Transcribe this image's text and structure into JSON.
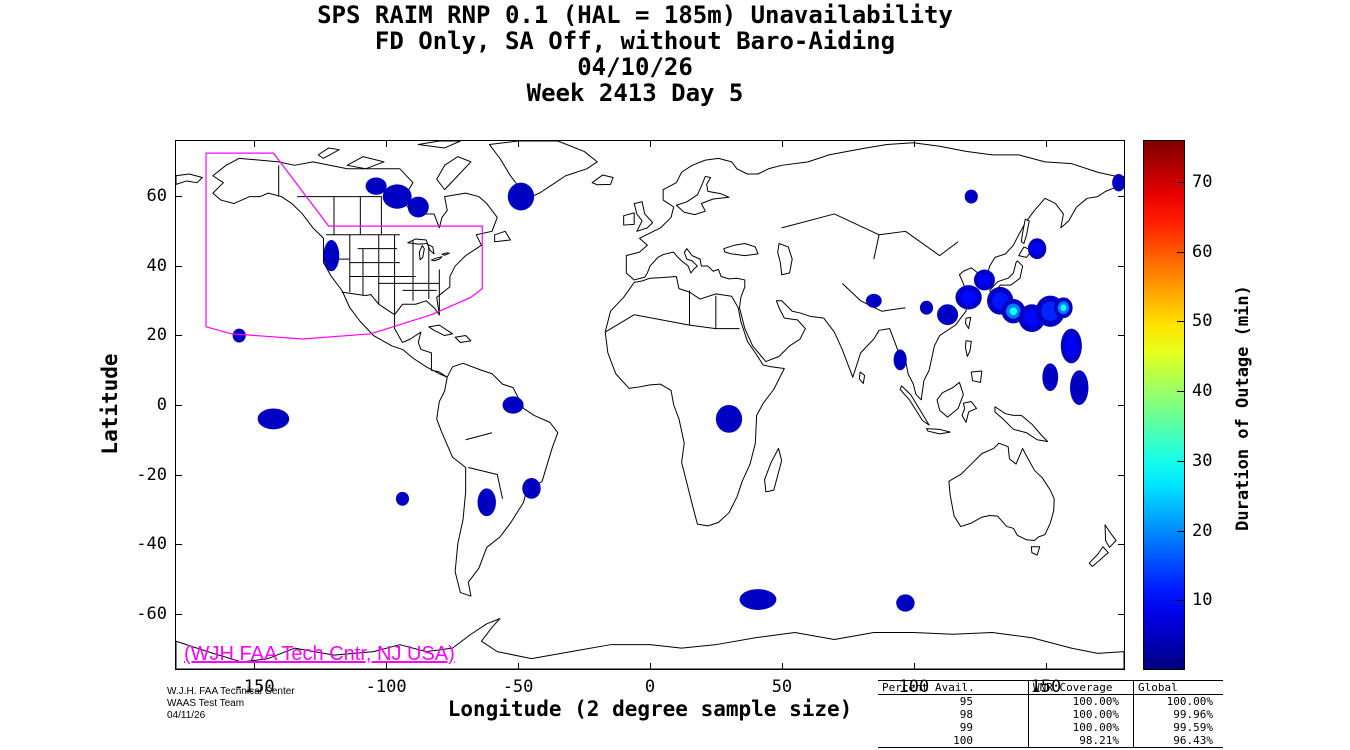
{
  "title": {
    "line1": "SPS RAIM RNP 0.1 (HAL = 185m) Unavailability",
    "line2": "FD Only, SA Off, without Baro-Aiding",
    "line3": "04/10/26",
    "line4": "Week 2413 Day 5"
  },
  "axes": {
    "xlabel": "Longitude (2 degree sample size)",
    "ylabel": "Latitude",
    "x_ticks": [
      -150,
      -100,
      -50,
      0,
      50,
      100,
      150
    ],
    "y_ticks": [
      60,
      40,
      20,
      0,
      -20,
      -40,
      -60
    ],
    "lon_range": [
      -180,
      180
    ],
    "lat_range": [
      -76,
      76
    ]
  },
  "colorbar": {
    "label": "Duration of Outage (min)",
    "ticks": [
      10,
      20,
      30,
      40,
      50,
      60,
      70
    ],
    "range": [
      0,
      76
    ],
    "colormap": "jet"
  },
  "map_annotation": "(WJH FAA Tech Cntr, NJ USA)",
  "annotation_color": "#ff00ff",
  "credits": {
    "line1": "W.J.H. FAA Technical Center",
    "line2": "WAAS Test Team",
    "line3": "04/11/26"
  },
  "stats_table": {
    "headers": [
      "Percent Avail.",
      "WNR Coverage",
      "Global"
    ],
    "rows": [
      [
        "95",
        "100.00%",
        "100.00%"
      ],
      [
        "98",
        "100.00%",
        "99.96%"
      ],
      [
        "99",
        "100.00%",
        "99.59%"
      ],
      [
        "100",
        "98.21%",
        "96.43%"
      ]
    ]
  },
  "chart_data": {
    "type": "heatmap",
    "projection": "equirectangular world map",
    "title": "SPS RAIM RNP 0.1 (HAL = 185m) Unavailability",
    "value_units": "duration of outage (min)",
    "legend_position": "right colorbar",
    "coverage_boundary_color": "#ff00ff",
    "coverage_boundary": [
      [
        -168.6,
        72.5
      ],
      [
        -143,
        72.5
      ],
      [
        -122,
        51.5
      ],
      [
        -63.7,
        51.5
      ],
      [
        -63.7,
        33.5
      ],
      [
        -68,
        31
      ],
      [
        -83,
        26
      ],
      [
        -106,
        20.5
      ],
      [
        -132,
        19
      ],
      [
        -159,
        20.5
      ],
      [
        -168.6,
        22.5
      ]
    ],
    "outage_regions": [
      {
        "lon": -104,
        "lat": 63,
        "rx": 4,
        "ry": 2.5,
        "peak_min": 6
      },
      {
        "lon": -96,
        "lat": 60,
        "rx": 5.5,
        "ry": 3.5,
        "peak_min": 7
      },
      {
        "lon": -88,
        "lat": 57,
        "rx": 4,
        "ry": 3,
        "peak_min": 6
      },
      {
        "lon": -49,
        "lat": 60,
        "rx": 5,
        "ry": 4,
        "peak_min": 7
      },
      {
        "lon": -121,
        "lat": 43,
        "rx": 3,
        "ry": 4.5,
        "peak_min": 6
      },
      {
        "lon": -156,
        "lat": 20,
        "rx": 2.5,
        "ry": 2,
        "peak_min": 6
      },
      {
        "lon": -143,
        "lat": -4,
        "rx": 6,
        "ry": 3,
        "peak_min": 6
      },
      {
        "lon": -52,
        "lat": 0,
        "rx": 4,
        "ry": 2.5,
        "peak_min": 6
      },
      {
        "lon": -94,
        "lat": -27,
        "rx": 2.5,
        "ry": 2,
        "peak_min": 6
      },
      {
        "lon": -62,
        "lat": -28,
        "rx": 3.5,
        "ry": 4,
        "peak_min": 7
      },
      {
        "lon": -45,
        "lat": -24,
        "rx": 3.5,
        "ry": 3,
        "peak_min": 6
      },
      {
        "lon": 30,
        "lat": -4,
        "rx": 5,
        "ry": 4,
        "peak_min": 7
      },
      {
        "lon": 41,
        "lat": -56,
        "rx": 7,
        "ry": 3,
        "peak_min": 7
      },
      {
        "lon": 97,
        "lat": -57,
        "rx": 3.5,
        "ry": 2.5,
        "peak_min": 6
      },
      {
        "lon": 85,
        "lat": 30,
        "rx": 3,
        "ry": 2,
        "peak_min": 6
      },
      {
        "lon": 95,
        "lat": 13,
        "rx": 2.5,
        "ry": 3,
        "peak_min": 6
      },
      {
        "lon": 105,
        "lat": 28,
        "rx": 2.5,
        "ry": 2,
        "peak_min": 7
      },
      {
        "lon": 113,
        "lat": 26,
        "rx": 4,
        "ry": 3,
        "peak_min": 10
      },
      {
        "lon": 121,
        "lat": 31,
        "rx": 5,
        "ry": 3.5,
        "peak_min": 14
      },
      {
        "lon": 127,
        "lat": 36,
        "rx": 4,
        "ry": 3,
        "peak_min": 12
      },
      {
        "lon": 133,
        "lat": 30,
        "rx": 5,
        "ry": 4,
        "peak_min": 16
      },
      {
        "lon": 138,
        "lat": 27,
        "rx": 4.5,
        "ry": 3.5,
        "peak_min": 30
      },
      {
        "lon": 145,
        "lat": 25,
        "rx": 5,
        "ry": 4,
        "peak_min": 14
      },
      {
        "lon": 152,
        "lat": 27,
        "rx": 5.5,
        "ry": 4.5,
        "peak_min": 18
      },
      {
        "lon": 157,
        "lat": 28,
        "rx": 3.5,
        "ry": 3,
        "peak_min": 30
      },
      {
        "lon": 160,
        "lat": 17,
        "rx": 4,
        "ry": 5,
        "peak_min": 12
      },
      {
        "lon": 163,
        "lat": 5,
        "rx": 3.5,
        "ry": 5,
        "peak_min": 10
      },
      {
        "lon": 152,
        "lat": 8,
        "rx": 3,
        "ry": 4,
        "peak_min": 8
      },
      {
        "lon": 147,
        "lat": 45,
        "rx": 3.5,
        "ry": 3,
        "peak_min": 12
      },
      {
        "lon": 122,
        "lat": 60,
        "rx": 2.5,
        "ry": 2,
        "peak_min": 6
      },
      {
        "lon": 178,
        "lat": 64,
        "rx": 2.5,
        "ry": 2.5,
        "peak_min": 6
      }
    ]
  }
}
